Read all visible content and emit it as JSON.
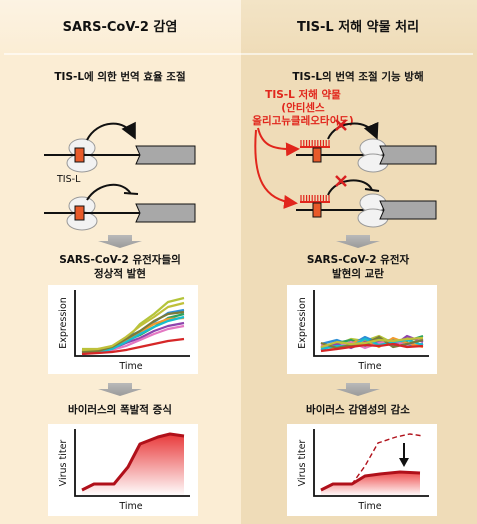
{
  "left": {
    "header": "SARS-CoV-2 감염",
    "mechanism_title": "TIS-L에 의한 번역 효율 조절",
    "tis_label": "TIS-L",
    "expression_title": [
      "SARS-CoV-2 유전자들의",
      "정상적 발현"
    ],
    "expression_chart": {
      "xlabel": "Time",
      "ylabel": "Expression"
    },
    "titer_title": "바이러스의 폭발적 증식",
    "titer_chart": {
      "xlabel": "Time",
      "ylabel": "Virus titer"
    }
  },
  "right": {
    "header": "TIS-L 저해 약물 처리",
    "mechanism_title": "TIS-L의 번역 조절 기능 방해",
    "drug_label": [
      "TIS-L 저해 약물",
      "(안티센스",
      "올리고뉴클레오타이드)"
    ],
    "expression_title": [
      "SARS-CoV-2 유전자",
      "발현의 교란"
    ],
    "expression_chart": {
      "xlabel": "Time",
      "ylabel": "Expression"
    },
    "titer_title": "바이러스 감염성의 감소",
    "titer_chart": {
      "xlabel": "Time",
      "ylabel": "Virus titer"
    }
  },
  "colors": {
    "left_panel": "#fbedd4",
    "right_panel": "#efdcb8",
    "accent_red": "#e1261c",
    "gene_box": "#a8a8a8",
    "tis_box": "#e85a2a"
  }
}
